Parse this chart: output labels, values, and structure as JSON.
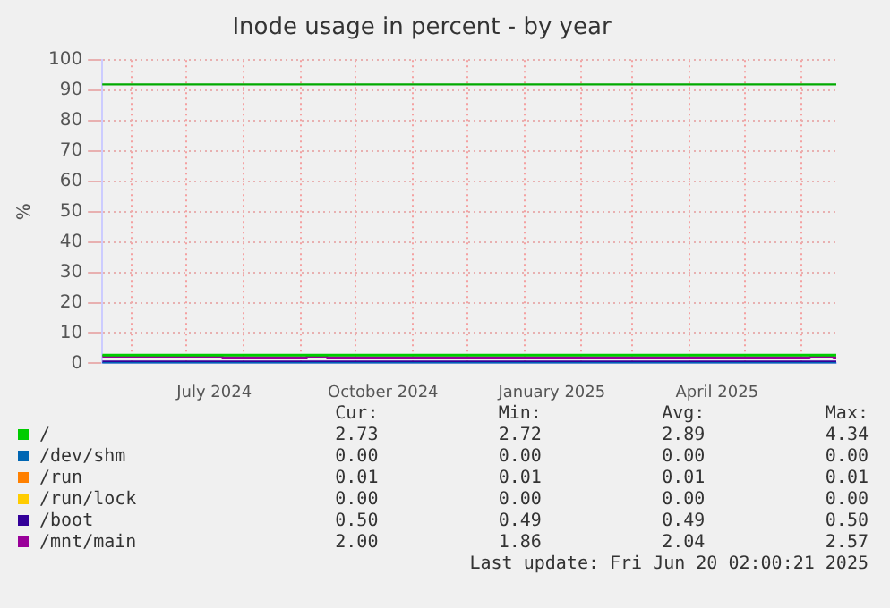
{
  "chart_data": {
    "type": "line",
    "title": "Inode usage in percent - by year",
    "ylabel": "%",
    "xlim": [
      "2024-05-16",
      "2025-06-20"
    ],
    "xticks": [
      {
        "value": "2024-06-01",
        "label": null
      },
      {
        "value": "2024-07-01",
        "label": null
      },
      {
        "value": "2024-07-16",
        "label": "July 2024"
      },
      {
        "value": "2024-08-01",
        "label": null
      },
      {
        "value": "2024-09-01",
        "label": null
      },
      {
        "value": "2024-10-01",
        "label": null
      },
      {
        "value": "2024-10-16",
        "label": "October 2024"
      },
      {
        "value": "2024-11-01",
        "label": null
      },
      {
        "value": "2024-12-01",
        "label": null
      },
      {
        "value": "2025-01-01",
        "label": null
      },
      {
        "value": "2025-01-16",
        "label": "January 2025"
      },
      {
        "value": "2025-02-01",
        "label": null
      },
      {
        "value": "2025-03-01",
        "label": null
      },
      {
        "value": "2025-04-01",
        "label": null
      },
      {
        "value": "2025-04-16",
        "label": "April 2025"
      },
      {
        "value": "2025-05-01",
        "label": null
      },
      {
        "value": "2025-06-01",
        "label": null
      }
    ],
    "ylim": [
      0,
      100
    ],
    "yticks": [
      0,
      10,
      20,
      30,
      40,
      50,
      60,
      70,
      80,
      90,
      100
    ],
    "grid": true,
    "legend": "bottom",
    "series": [
      {
        "name": "/",
        "color": "#00cc00",
        "x": [
          "2024-05-16",
          "2025-06-20"
        ],
        "values": [
          2.7,
          2.7
        ]
      },
      {
        "name": "/dev/shm",
        "color": "#0066b3",
        "x": [
          "2024-05-16",
          "2025-06-20"
        ],
        "values": [
          0,
          0
        ]
      },
      {
        "name": "/run",
        "color": "#ff8000"
      },
      {
        "name": "/run/lock",
        "color": "#ffcc00"
      },
      {
        "name": "/boot",
        "color": "#330099",
        "x": [
          "2024-05-16",
          "2025-06-20"
        ],
        "values": [
          0.5,
          0.5
        ]
      },
      {
        "name": "/mnt/main",
        "color": "#990099",
        "x": [
          "2024-05-16",
          "2024-07-20",
          "2024-07-21",
          "2024-09-04",
          "2024-09-05",
          "2024-09-15",
          "2024-09-16",
          "2025-06-05",
          "2025-06-06",
          "2025-06-18",
          "2025-06-19",
          "2025-06-20"
        ],
        "values": [
          2.3,
          2.3,
          1.9,
          1.9,
          2.3,
          2.3,
          1.9,
          1.9,
          2.3,
          2.3,
          1.9,
          2.0
        ]
      }
    ],
    "ref_lines": [
      {
        "axis": "y",
        "value": 92,
        "color": "#00aa00"
      }
    ],
    "annotations": [
      "Cur:",
      "Min:",
      "Avg:",
      "Max:",
      "2.73",
      "2.72",
      "2.89",
      "4.34",
      "0.00",
      "0.00",
      "0.00",
      "0.00",
      "0.01",
      "0.01",
      "0.01",
      "0.01",
      "0.00",
      "0.00",
      "0.00",
      "0.00",
      "0.50",
      "0.49",
      "0.49",
      "0.50",
      "2.00",
      "1.86",
      "2.04",
      "2.57",
      "Last update: Fri Jun 20 02:00:21 2025"
    ]
  }
}
